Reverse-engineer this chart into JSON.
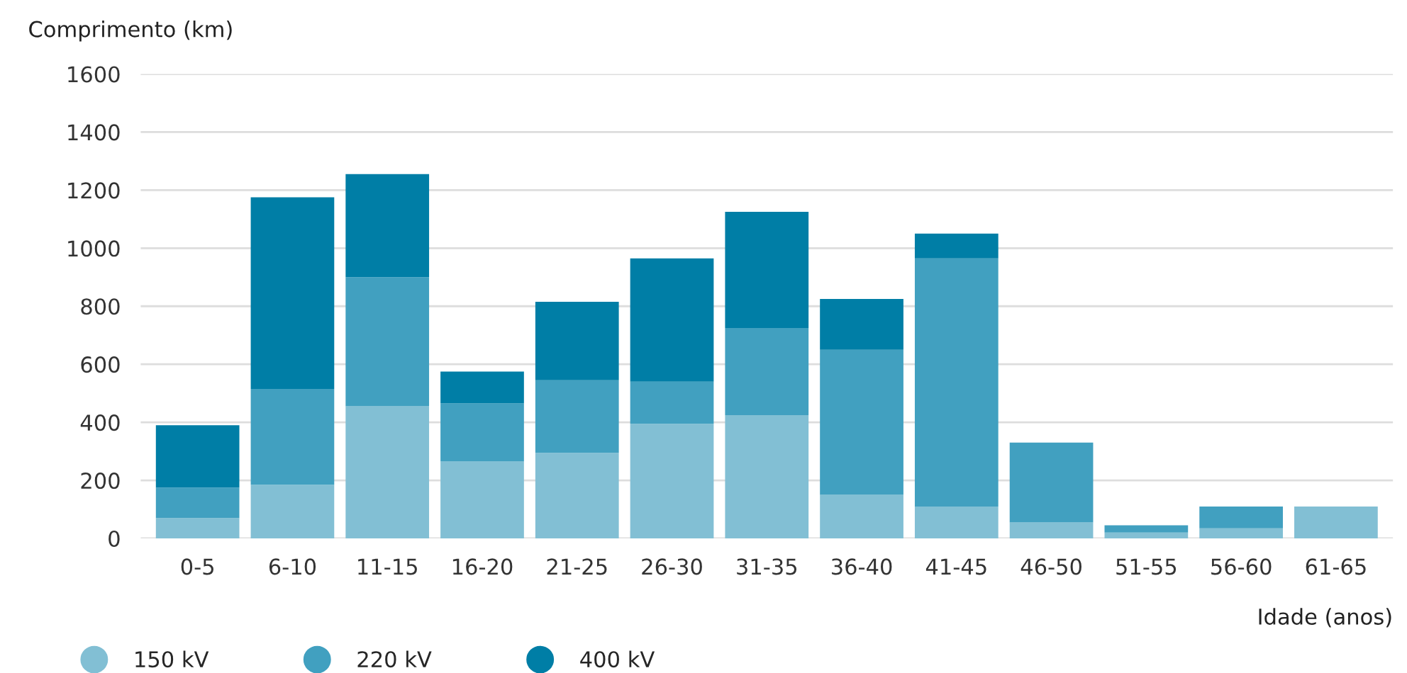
{
  "chart_data": {
    "type": "bar",
    "stacked": true,
    "ylabel": "Comprimento (km)",
    "xlabel": "Idade (anos)",
    "categories": [
      "0-5",
      "6-10",
      "11-15",
      "16-20",
      "21-25",
      "26-30",
      "31-35",
      "36-40",
      "41-45",
      "46-50",
      "51-55",
      "56-60",
      "61-65"
    ],
    "series": [
      {
        "name": "150 kV",
        "color": "#82bfd4",
        "values": [
          70,
          185,
          455,
          265,
          295,
          395,
          425,
          150,
          110,
          55,
          20,
          35,
          110
        ]
      },
      {
        "name": "220 kV",
        "color": "#41a0c0",
        "values": [
          105,
          330,
          445,
          200,
          250,
          145,
          300,
          500,
          855,
          275,
          25,
          75,
          0
        ]
      },
      {
        "name": "400 kV",
        "color": "#007ea6",
        "values": [
          215,
          660,
          355,
          110,
          270,
          425,
          400,
          175,
          85,
          0,
          0,
          0,
          0
        ]
      }
    ],
    "ylim": [
      0,
      1600
    ],
    "yticks": [
      0,
      200,
      400,
      600,
      800,
      1000,
      1200,
      1400,
      1600
    ],
    "grid": "y",
    "legend": "bottom left"
  }
}
